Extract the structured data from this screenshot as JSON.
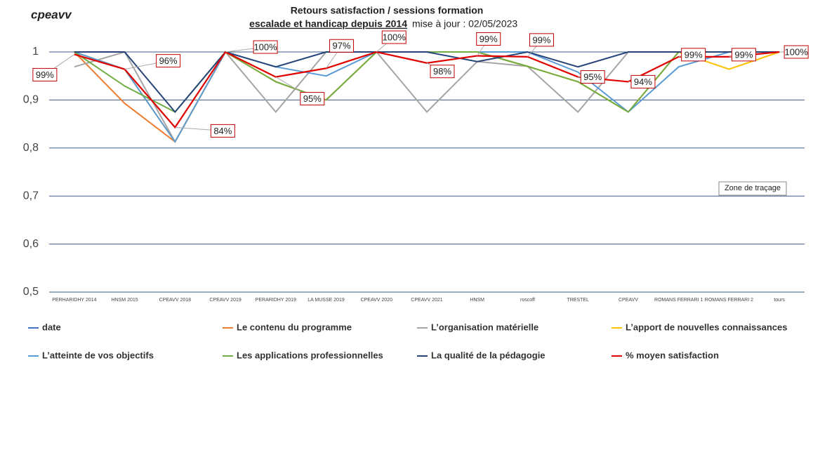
{
  "chart_data": {
    "type": "line",
    "title": "Retours satisfaction / sessions formation",
    "subtitle": "escalade et handicap depuis 2014",
    "update_note": "mise à jour : 02/05/2023",
    "logo": "cpeavv",
    "annotation": "Zone de traçage",
    "categories": [
      "PERHARIDHY 2014",
      "HNSM 2015",
      "CPEAVV 2018",
      "CPEAVV 2019",
      "PERARIDHY 2019",
      "LA MUSSE 2019",
      "CPEAVV 2020",
      "CPEAVV 2021",
      "HNSM",
      "roscoff",
      "TRESTEL",
      "CPEAVV",
      "ROMANS FERRARI 1",
      "ROMANS FERRARI 2",
      "tours"
    ],
    "ylim": [
      0.5,
      1.05
    ],
    "yticks": [
      {
        "value": 0.5,
        "label": "0,5"
      },
      {
        "value": 0.6,
        "label": "0,6"
      },
      {
        "value": 0.7,
        "label": "0,7"
      },
      {
        "value": 0.8,
        "label": "0,8"
      },
      {
        "value": 0.9,
        "label": "0,9"
      },
      1
    ],
    "grid": true,
    "legend": "bottom",
    "series": [
      {
        "name": "date",
        "color": "#4472c4",
        "values": [
          null,
          null,
          null,
          null,
          null,
          null,
          null,
          null,
          null,
          null,
          null,
          null,
          null,
          null,
          null
        ]
      },
      {
        "name": "Le contenu du programme",
        "color": "#ed7d31",
        "values": [
          1,
          0.893,
          0.813,
          1,
          0.938,
          0.9,
          1,
          1,
          1,
          0.97,
          0.938,
          0.875,
          1,
          1,
          1
        ]
      },
      {
        "name": "L’organisation matérielle",
        "color": "#a5a5a5",
        "values": [
          0.969,
          1,
          0.813,
          1,
          0.875,
          1,
          1,
          0.875,
          0.98,
          0.97,
          0.875,
          1,
          1,
          1,
          1
        ]
      },
      {
        "name": "L’apport de nouvelles connaissances",
        "color": "#ffc000",
        "values": [
          1,
          0.964,
          0.813,
          1,
          0.938,
          0.9,
          1,
          1,
          1,
          0.97,
          0.938,
          0.875,
          1,
          0.964,
          1
        ]
      },
      {
        "name": "L’atteinte de vos objectifs",
        "color": "#5b9bd5",
        "values": [
          1,
          0.964,
          0.813,
          1,
          0.969,
          0.95,
          1,
          1,
          1,
          1,
          0.958,
          0.875,
          0.969,
          1,
          1
        ]
      },
      {
        "name": "Les applications professionnelles",
        "color": "#70ad47",
        "values": [
          1,
          0.929,
          0.875,
          1,
          0.938,
          0.9,
          1,
          1,
          1,
          0.97,
          0.938,
          0.875,
          1,
          1,
          1
        ]
      },
      {
        "name": "La qualité de la pédagogie",
        "color": "#264478",
        "values": [
          1,
          1,
          0.875,
          1,
          0.969,
          1,
          1,
          1,
          0.98,
          1,
          0.969,
          1,
          1,
          1,
          1
        ]
      },
      {
        "name": "% moyen satisfaction",
        "color": "#e00000",
        "values": [
          0.995,
          0.964,
          0.843,
          1,
          0.948,
          0.966,
          1,
          0.977,
          0.992,
          0.99,
          0.948,
          0.938,
          0.99,
          0.99,
          1
        ],
        "value_labels": [
          "99%",
          "96%",
          "84%",
          "100%",
          "95%",
          "97%",
          "100%",
          "98%",
          "99%",
          "99%",
          "95%",
          "94%",
          "99%",
          "99%",
          "100%"
        ]
      }
    ]
  }
}
